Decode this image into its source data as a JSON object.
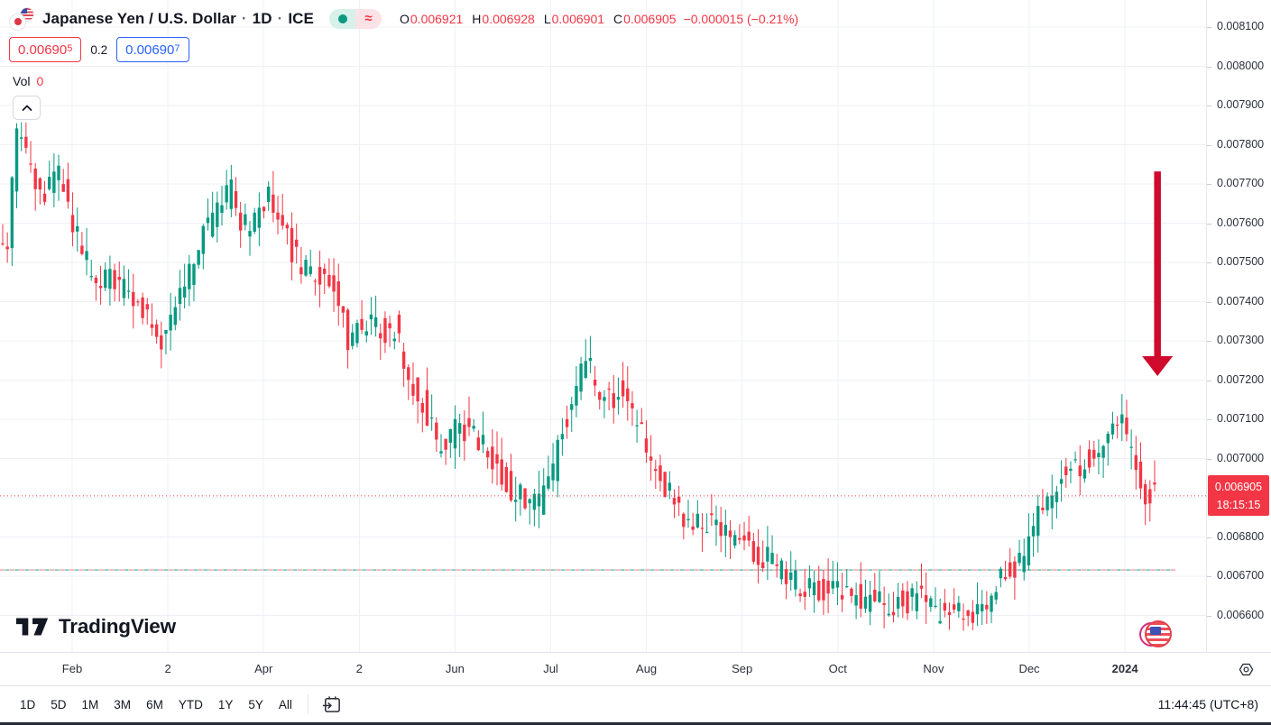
{
  "header": {
    "symbol_title": "Japanese Yen / U.S. Dollar",
    "dot": "·",
    "timeframe": "1D",
    "exchange": "ICE",
    "market_status": {
      "dot_color": "#089981",
      "approx": "≈",
      "approx_color": "#f23645"
    },
    "ohlc": {
      "o_label": "O",
      "o_value": "0.006921",
      "h_label": "H",
      "h_value": "0.006928",
      "l_label": "L",
      "l_value": "0.006901",
      "c_label": "C",
      "c_value": "0.006905",
      "change": "−0.000015 (−0.21%)"
    },
    "sell_price": {
      "main": "0.00690",
      "sup": "5"
    },
    "spread": "0.2",
    "buy_price": {
      "main": "0.00690",
      "sup": "7"
    },
    "volume_label": "Vol",
    "volume_value": "0"
  },
  "price_scale": {
    "labels": [
      "0.008100",
      "0.008000",
      "0.007900",
      "0.007800",
      "0.007700",
      "0.007600",
      "0.007500",
      "0.007400",
      "0.007300",
      "0.007200",
      "0.007100",
      "0.007000",
      "0.006800",
      "0.006700",
      "0.006600"
    ],
    "current_price": "0.006905",
    "countdown": "18:15:15"
  },
  "time_scale": {
    "labels": [
      {
        "text": "Feb",
        "t": 1
      },
      {
        "text": "2",
        "t": 2
      },
      {
        "text": "Apr",
        "t": 3
      },
      {
        "text": "2",
        "t": 4
      },
      {
        "text": "Jun",
        "t": 5
      },
      {
        "text": "Jul",
        "t": 6
      },
      {
        "text": "Aug",
        "t": 7
      },
      {
        "text": "Sep",
        "t": 8
      },
      {
        "text": "Oct",
        "t": 9
      },
      {
        "text": "Nov",
        "t": 10
      },
      {
        "text": "Dec",
        "t": 11
      },
      {
        "text": "2024",
        "t": 12,
        "bold": true
      }
    ],
    "clock": "11:44:45 (UTC+8)"
  },
  "toolbar": {
    "ranges": [
      "1D",
      "5D",
      "1M",
      "3M",
      "6M",
      "YTD",
      "1Y",
      "5Y",
      "All"
    ]
  },
  "logo": {
    "text": "TradingView"
  },
  "chart_data": {
    "type": "candlestick",
    "symbol": "Japanese Yen / U.S. Dollar",
    "timeframe": "1D",
    "exchange": "ICE",
    "up_color": "#089981",
    "down_color": "#f23645",
    "grid": true,
    "y_axis": {
      "min": 0.0066,
      "max": 0.0081,
      "tick": 0.0001
    },
    "x_axis": {
      "unit": "months_since_2023-01-01",
      "left_t": 0.246,
      "right_t": 12.84
    },
    "current_price": 0.006905,
    "current_price_line_color": "#f23645",
    "dashed_level": {
      "price": 0.006716,
      "colors": [
        "#f0a0a0",
        "#63b9b1"
      ]
    },
    "annotation_arrow": {
      "t": 12.34,
      "from_price": 0.007732,
      "to_price": 0.007215,
      "color": "#cf0a2c"
    },
    "ohlc_today": {
      "open": 0.006921,
      "high": 0.006928,
      "low": 0.006901,
      "close": 0.006905,
      "change": -1.5e-05,
      "change_pct": -0.21
    },
    "trend_anchors_t_price": [
      [
        0.25,
        0.00755
      ],
      [
        0.34,
        0.0075
      ],
      [
        0.38,
        0.00764
      ],
      [
        0.43,
        0.00784
      ],
      [
        0.53,
        0.00777
      ],
      [
        0.64,
        0.0077
      ],
      [
        0.72,
        0.00765
      ],
      [
        0.83,
        0.00774
      ],
      [
        0.95,
        0.00768
      ],
      [
        1.09,
        0.00755
      ],
      [
        1.24,
        0.00745
      ],
      [
        1.38,
        0.00746
      ],
      [
        1.52,
        0.00743
      ],
      [
        1.66,
        0.00741
      ],
      [
        1.8,
        0.00735
      ],
      [
        1.94,
        0.00729
      ],
      [
        2.08,
        0.00735
      ],
      [
        2.24,
        0.00747
      ],
      [
        2.4,
        0.00757
      ],
      [
        2.56,
        0.00765
      ],
      [
        2.68,
        0.00768
      ],
      [
        2.81,
        0.00759
      ],
      [
        2.98,
        0.00763
      ],
      [
        3.1,
        0.00767
      ],
      [
        3.24,
        0.00757
      ],
      [
        3.38,
        0.0075
      ],
      [
        3.53,
        0.00748
      ],
      [
        3.66,
        0.00745
      ],
      [
        3.78,
        0.00744
      ],
      [
        3.9,
        0.0073
      ],
      [
        4.02,
        0.00735
      ],
      [
        4.16,
        0.00734
      ],
      [
        4.3,
        0.00732
      ],
      [
        4.41,
        0.00734
      ],
      [
        4.53,
        0.0072
      ],
      [
        4.68,
        0.00715
      ],
      [
        4.82,
        0.00705
      ],
      [
        4.94,
        0.00703
      ],
      [
        5.05,
        0.00709
      ],
      [
        5.19,
        0.00706
      ],
      [
        5.34,
        0.00703
      ],
      [
        5.48,
        0.00698
      ],
      [
        5.62,
        0.00692
      ],
      [
        5.76,
        0.00689
      ],
      [
        5.9,
        0.00689
      ],
      [
        5.99,
        0.00692
      ],
      [
        6.14,
        0.00706
      ],
      [
        6.28,
        0.00717
      ],
      [
        6.39,
        0.00726
      ],
      [
        6.51,
        0.00717
      ],
      [
        6.65,
        0.00715
      ],
      [
        6.77,
        0.00718
      ],
      [
        6.89,
        0.00711
      ],
      [
        7.03,
        0.00703
      ],
      [
        7.17,
        0.00696
      ],
      [
        7.32,
        0.00688
      ],
      [
        7.46,
        0.00684
      ],
      [
        7.6,
        0.00683
      ],
      [
        7.74,
        0.00685
      ],
      [
        7.88,
        0.0068
      ],
      [
        8.02,
        0.00679
      ],
      [
        8.16,
        0.00676
      ],
      [
        8.3,
        0.00674
      ],
      [
        8.45,
        0.00671
      ],
      [
        8.59,
        0.00668
      ],
      [
        8.73,
        0.00667
      ],
      [
        8.87,
        0.00667
      ],
      [
        9.01,
        0.00667
      ],
      [
        9.15,
        0.00666
      ],
      [
        9.29,
        0.00664
      ],
      [
        9.44,
        0.00664
      ],
      [
        9.58,
        0.00663
      ],
      [
        9.72,
        0.00663
      ],
      [
        9.86,
        0.00665
      ],
      [
        9.95,
        0.00663
      ],
      [
        10.05,
        0.00659
      ],
      [
        10.16,
        0.00662
      ],
      [
        10.28,
        0.0066
      ],
      [
        10.41,
        0.00658
      ],
      [
        10.52,
        0.00663
      ],
      [
        10.63,
        0.00665
      ],
      [
        10.75,
        0.0067
      ],
      [
        10.88,
        0.00672
      ],
      [
        10.99,
        0.00677
      ],
      [
        11.1,
        0.00684
      ],
      [
        11.18,
        0.0069
      ],
      [
        11.25,
        0.00687
      ],
      [
        11.37,
        0.00697
      ],
      [
        11.46,
        0.00699
      ],
      [
        11.56,
        0.00698
      ],
      [
        11.65,
        0.00701
      ],
      [
        11.76,
        0.007
      ],
      [
        11.89,
        0.00708
      ],
      [
        11.95,
        0.00711
      ],
      [
        12.03,
        0.00706
      ],
      [
        12.1,
        0.00699
      ],
      [
        12.18,
        0.00694
      ],
      [
        12.25,
        0.00691
      ],
      [
        12.34,
        0.0069
      ]
    ]
  }
}
